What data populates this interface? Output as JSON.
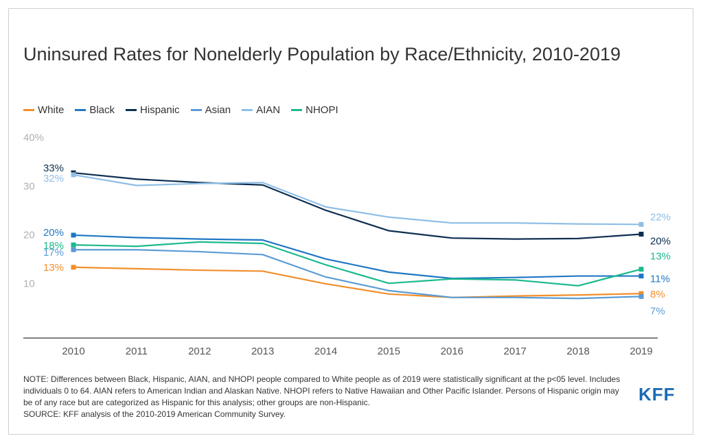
{
  "title": "Uninsured Rates for Nonelderly Population by Race/Ethnicity, 2010-2019",
  "note": "NOTE: Differences between Black, Hispanic, AIAN, and NHOPI people compared to White people as of 2019 were statistically significant at the p<05 level. Includes individuals 0 to 64. AIAN refers to American Indian and Alaskan Native. NHOPI refers to Native Hawaiian and Other Pacific Islander. Persons of Hispanic origin may be of any race but are categorized as Hispanic for this analysis; other groups are non-Hispanic.",
  "source": "SOURCE: KFF analysis of the 2010-2019 American Community Survey.",
  "logo": "KFF",
  "chart_data": {
    "type": "line",
    "title": "Uninsured Rates for Nonelderly Population by Race/Ethnicity, 2010-2019",
    "xlabel": "",
    "ylabel": "",
    "ylim": [
      0,
      40
    ],
    "yticks": [
      10,
      20,
      30,
      40
    ],
    "ytick_labels": [
      "10",
      "20",
      "30",
      "40%"
    ],
    "grid": false,
    "legend_position": "top-left",
    "x": [
      "2010",
      "2011",
      "2012",
      "2013",
      "2014",
      "2015",
      "2016",
      "2017",
      "2018",
      "2019"
    ],
    "series": [
      {
        "name": "White",
        "color": "#f28e2b",
        "values": [
          13.2,
          12.9,
          12.6,
          12.4,
          9.8,
          7.7,
          7.0,
          7.3,
          7.5,
          7.8
        ],
        "start_label": "13%",
        "end_label": "8%"
      },
      {
        "name": "Black",
        "color": "#1f77c4",
        "values": [
          19.8,
          19.3,
          19.0,
          18.8,
          14.9,
          12.2,
          10.9,
          11.1,
          11.4,
          11.4
        ],
        "start_label": "20%",
        "end_label": "11%"
      },
      {
        "name": "Hispanic",
        "color": "#0d2e50",
        "values": [
          32.6,
          31.3,
          30.6,
          30.1,
          24.9,
          20.7,
          19.2,
          19.0,
          19.1,
          20.0
        ],
        "start_label": "33%",
        "end_label": "20%"
      },
      {
        "name": "Asian",
        "color": "#5a9bd5",
        "values": [
          16.8,
          16.8,
          16.4,
          15.8,
          11.2,
          8.4,
          7.0,
          7.0,
          6.8,
          7.2
        ],
        "start_label": "17%",
        "end_label": "7%"
      },
      {
        "name": "AIAN",
        "color": "#8ebee6",
        "values": [
          32.2,
          30.0,
          30.4,
          30.6,
          25.6,
          23.5,
          22.3,
          22.3,
          22.1,
          22.0
        ],
        "start_label": "32%",
        "end_label": "22%"
      },
      {
        "name": "NHOPI",
        "color": "#1bb98c",
        "values": [
          17.8,
          17.5,
          18.4,
          18.1,
          13.7,
          9.9,
          10.8,
          10.6,
          9.4,
          12.8
        ],
        "start_label": "18%",
        "end_label": "13%"
      }
    ]
  }
}
